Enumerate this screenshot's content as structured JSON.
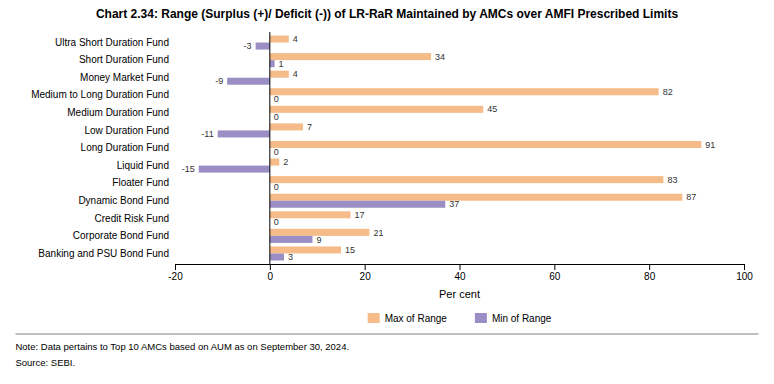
{
  "chart_data": {
    "type": "bar",
    "orientation": "horizontal",
    "title": "Chart 2.34: Range (Surplus (+)/ Deficit (-)) of LR-RaR Maintained by AMCs over AMFI Prescribed Limits",
    "categories": [
      "Banking and PSU Bond Fund",
      "Corporate Bond Fund",
      "Credit Risk Fund",
      "Dynamic Bond Fund",
      "Floater Fund",
      "Liquid Fund",
      "Long Duration Fund",
      "Low Duration Fund",
      "Medium Duration Fund",
      "Medium to Long Duration Fund",
      "Money Market Fund",
      "Short Duration Fund",
      "Ultra Short Duration Fund"
    ],
    "series": [
      {
        "name": "Max of Range",
        "color": "#f5bc8a",
        "values": [
          15,
          21,
          17,
          87,
          83,
          2,
          91,
          7,
          45,
          82,
          4,
          34,
          4
        ]
      },
      {
        "name": "Min of Range",
        "color": "#9b8ec4",
        "values": [
          3,
          9,
          0,
          37,
          0,
          -15,
          0,
          -11,
          0,
          0,
          -9,
          1,
          -3
        ]
      }
    ],
    "xlabel": "Per cent",
    "xlim": [
      -20,
      100
    ],
    "xticks": [
      -20,
      0,
      20,
      40,
      60,
      80,
      100
    ],
    "grid": false,
    "legend": "bottom",
    "data_labels": true,
    "annotations": [
      "Note: Data pertains to Top 10 AMCs based on AUM as on September 30, 2024.",
      "Source: SEBI."
    ]
  }
}
